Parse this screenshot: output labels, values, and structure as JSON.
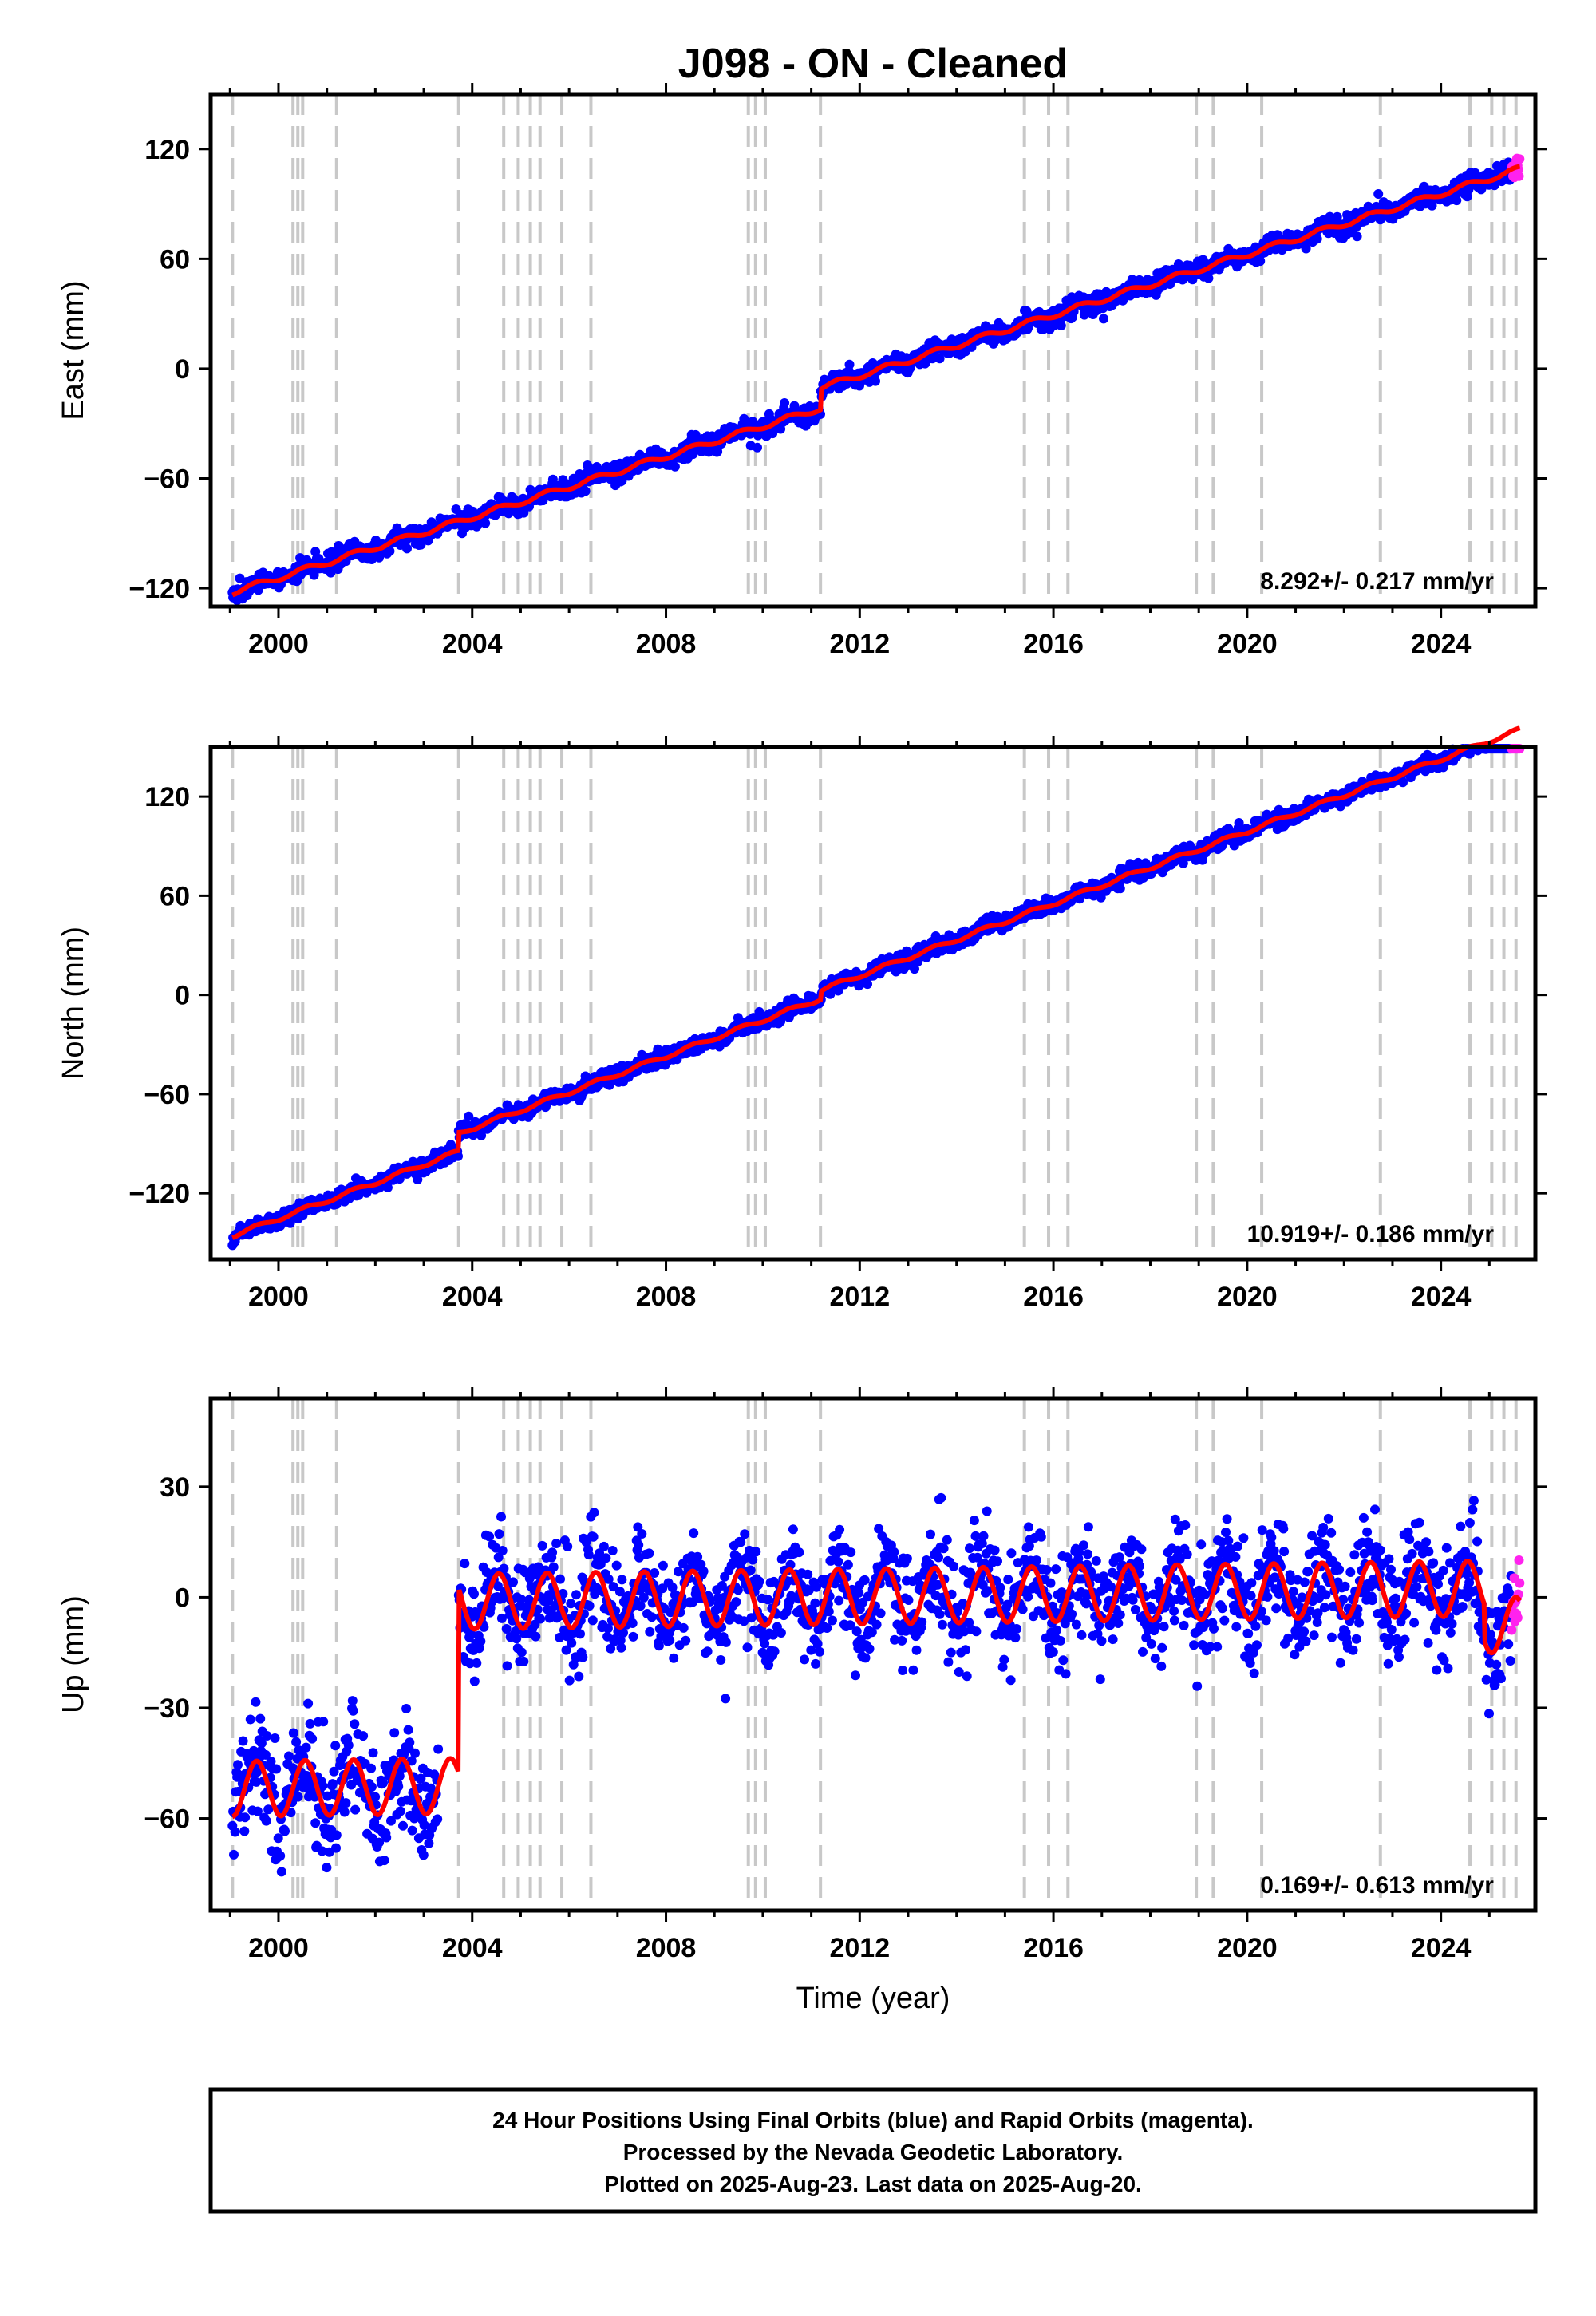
{
  "title": "J098  - ON - Cleaned",
  "colors": {
    "final": "#0000ff",
    "rapid": "#ff22ee",
    "model": "#ff0000",
    "event": "#c8c8c8"
  },
  "chart_data": [
    {
      "type": "scatter",
      "ylabel": "East (mm)",
      "xlabel": "",
      "xlim": [
        1998.6,
        2025.95
      ],
      "ylim": [
        -130,
        150
      ],
      "xticks": [
        2000,
        2004,
        2008,
        2012,
        2016,
        2020,
        2024
      ],
      "yticks": [
        -120,
        -60,
        0,
        60,
        120
      ],
      "rate": "8.292+/- 0.217 mm/yr",
      "model": {
        "start": 1999.05,
        "end": 2025.63,
        "y0": -122.2,
        "slope": 8.292,
        "annual_amp": 1.5,
        "noise": 2.6,
        "steps": [
          [
            2003.72,
            0
          ],
          [
            2011.19,
            11
          ]
        ]
      }
    },
    {
      "type": "scatter",
      "ylabel": "North (mm)",
      "xlabel": "",
      "xlim": [
        1998.6,
        2025.95
      ],
      "ylim": [
        -160,
        150
      ],
      "xticks": [
        2000,
        2004,
        2008,
        2012,
        2016,
        2020,
        2024
      ],
      "yticks": [
        -120,
        -60,
        0,
        60,
        120
      ],
      "rate": "10.919+/- 0.186 mm/yr",
      "model": {
        "start": 1999.05,
        "end": 2025.63,
        "y0": -145.8,
        "slope": 10.919,
        "annual_amp": 1.2,
        "noise": 2.4,
        "steps": [
          [
            2003.72,
            11
          ],
          [
            2011.19,
            5
          ]
        ]
      }
    },
    {
      "type": "scatter",
      "ylabel": "Up (mm)",
      "xlabel": "Time (year)",
      "xlim": [
        1998.6,
        2025.95
      ],
      "ylim": [
        -85,
        54
      ],
      "xticks": [
        2000,
        2004,
        2008,
        2012,
        2016,
        2020,
        2024
      ],
      "yticks": [
        -60,
        -30,
        0,
        30
      ],
      "rate": "0.169+/- 0.613 mm/yr",
      "model": {
        "start": 1999.05,
        "end": 2025.63,
        "y0": -52,
        "slope": 0.169,
        "annual_amp": 7.5,
        "noise": 7,
        "steps": [
          [
            2003.72,
            50
          ]
        ],
        "late_offset": [
          2024.9,
          -10
        ]
      }
    }
  ],
  "event_lines": [
    1999.05,
    2000.3,
    2000.4,
    2000.5,
    2001.2,
    2003.72,
    2004.65,
    2004.95,
    2005.2,
    2005.4,
    2005.85,
    2006.45,
    2009.7,
    2009.85,
    2010.05,
    2011.19,
    2015.4,
    2015.9,
    2016.3,
    2018.95,
    2019.3,
    2020.3,
    2022.75,
    2024.6,
    2025.05,
    2025.3,
    2025.55
  ],
  "footer": {
    "line1": "24 Hour Positions Using Final Orbits (blue) and Rapid Orbits (magenta).",
    "line2": "Processed by the Nevada Geodetic Laboratory.",
    "line3": "Plotted on 2025-Aug-23. Last data on 2025-Aug-20."
  }
}
